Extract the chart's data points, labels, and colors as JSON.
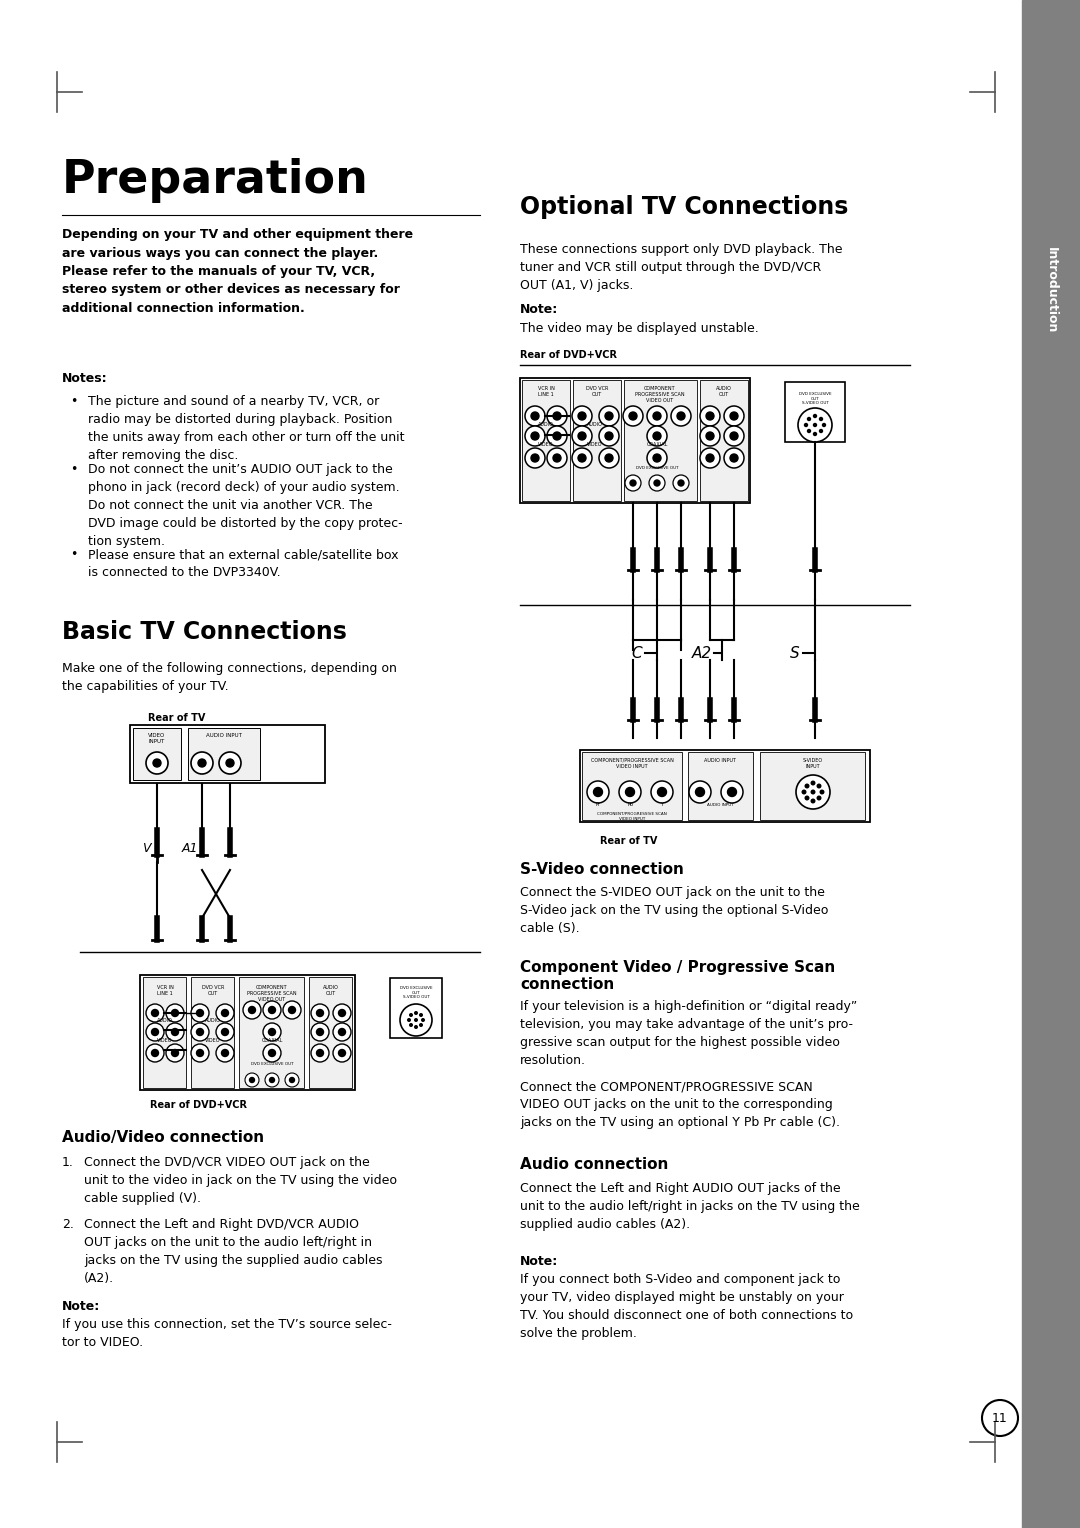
{
  "page_bg": "#ffffff",
  "title": "Preparation",
  "sidebar_color": "#808080",
  "sidebar_text": "Introduction",
  "page_number": "11",
  "main_intro_bold": "Depending on your TV and other equipment there\nare various ways you can connect the player.\nPlease refer to the manuals of your TV, VCR,\nstereo system or other devices as necessary for\nadditional connection information.",
  "notes_header": "Notes:",
  "note1": "The picture and sound of a nearby TV, VCR, or\nradio may be distorted during playback. Position\nthe units away from each other or turn off the unit\nafter removing the disc.",
  "note2": "Do not connect the unit’s AUDIO OUT jack to the\nphono in jack (record deck) of your audio system.\nDo not connect the unit via another VCR. The\nDVD image could be distorted by the copy protec-\ntion system.",
  "note3": "Please ensure that an external cable/satellite box\nis connected to the DVP3340V.",
  "basic_tv_header": "Basic TV Connections",
  "basic_tv_intro": "Make one of the following connections, depending on\nthe capabilities of your TV.",
  "basic_rear_tv_label": "Rear of TV",
  "basic_rear_dvd_label": "Rear of DVD+VCR",
  "av_connection_header": "Audio/Video connection",
  "av_step1": "Connect the DVD/VCR VIDEO OUT jack on the\nunit to the video in jack on the TV using the video\ncable supplied (V).",
  "av_step2": "Connect the Left and Right DVD/VCR AUDIO\nOUT jacks on the unit to the audio left/right in\njacks on the TV using the supplied audio cables\n(A2).",
  "av_note_header": "Note:",
  "av_note": "If you use this connection, set the TV’s source selec-\ntor to VIDEO.",
  "optional_tv_header": "Optional TV Connections",
  "optional_intro": "These connections support only DVD playback. The\ntuner and VCR still output through the DVD/VCR\nOUT (A1, V) jacks.",
  "optional_note_header": "Note:",
  "optional_note": "The video may be displayed unstable.",
  "optional_rear_dvd_label": "Rear of DVD+VCR",
  "optional_rear_tv_label": "Rear of TV",
  "svideo_header": "S-Video connection",
  "svideo_text": "Connect the S-VIDEO OUT jack on the unit to the\nS-Video jack on the TV using the optional S-Video\ncable (S).",
  "component_header": "Component Video / Progressive Scan\nconnection",
  "component_text1": "If your television is a high-definition or “digital ready”\ntelevision, you may take advantage of the unit’s pro-\ngressive scan output for the highest possible video\nresolution.",
  "component_text2": "Connect the COMPONENT/PROGRESSIVE SCAN\nVIDEO OUT jacks on the unit to the corresponding\njacks on the TV using an optional Y Pb Pr cable (C).",
  "audio_conn_header": "Audio connection",
  "audio_conn_text": "Connect the Left and Right AUDIO OUT jacks of the\nunit to the audio left/right in jacks on the TV using the\nsupplied audio cables (A2).",
  "final_note_header": "Note:",
  "final_note": "If you connect both S-Video and component jack to\nyour TV, video displayed might be unstably on your\nTV. You should disconnect one of both connections to\nsolve the problem."
}
